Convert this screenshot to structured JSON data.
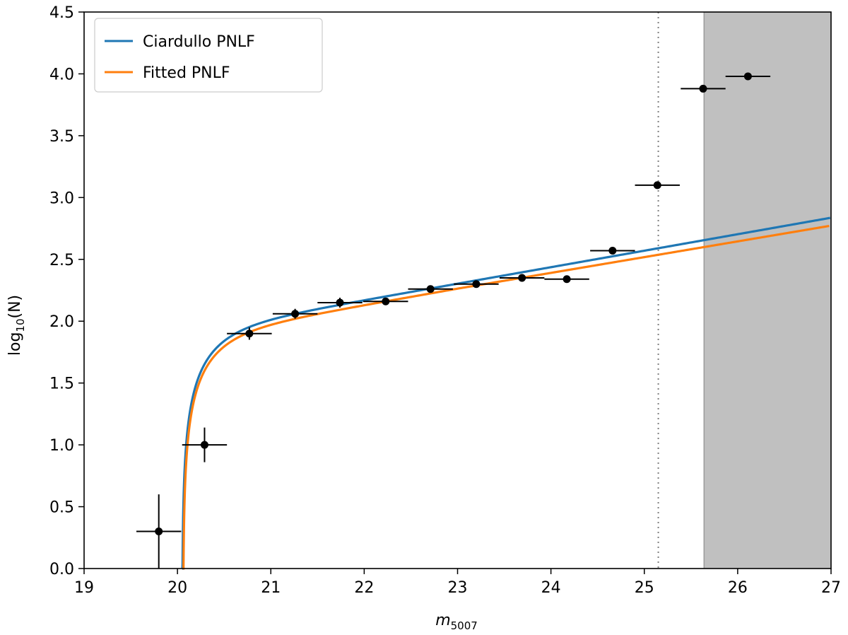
{
  "chart_data": {
    "type": "scatter",
    "xlabel_main": "m",
    "xlabel_sub": "5007",
    "ylabel_main": "log",
    "ylabel_sub": "10",
    "ylabel_tail": "(N)",
    "xlim": [
      19,
      27
    ],
    "ylim": [
      0,
      4.5
    ],
    "x_ticks": [
      19,
      20,
      21,
      22,
      23,
      24,
      25,
      26,
      27
    ],
    "x_tick_labels": [
      "19",
      "20",
      "21",
      "22",
      "23",
      "24",
      "25",
      "26",
      "27"
    ],
    "y_ticks": [
      0,
      0.5,
      1,
      1.5,
      2,
      2.5,
      3,
      3.5,
      4,
      4.5
    ],
    "y_tick_labels": [
      "0.0",
      "0.5",
      "1.0",
      "1.5",
      "2.0",
      "2.5",
      "3.0",
      "3.5",
      "4.0",
      "4.5"
    ],
    "grid": false,
    "legend_position": "top-left",
    "completeness_limit_x": 25.15,
    "shaded_region": [
      25.64,
      27
    ],
    "points": [
      {
        "x": 19.8,
        "y": 0.3,
        "xerr": 0.24,
        "yerr": 0.3
      },
      {
        "x": 20.29,
        "y": 1.0,
        "xerr": 0.24,
        "yerr": 0.14
      },
      {
        "x": 20.77,
        "y": 1.9,
        "xerr": 0.24,
        "yerr": 0.05
      },
      {
        "x": 21.26,
        "y": 2.06,
        "xerr": 0.24,
        "yerr": 0.04
      },
      {
        "x": 21.74,
        "y": 2.15,
        "xerr": 0.24,
        "yerr": 0.04
      },
      {
        "x": 22.23,
        "y": 2.16,
        "xerr": 0.24,
        "yerr": 0.03
      },
      {
        "x": 22.71,
        "y": 2.26,
        "xerr": 0.24,
        "yerr": 0.03
      },
      {
        "x": 23.2,
        "y": 2.3,
        "xerr": 0.24,
        "yerr": 0.03
      },
      {
        "x": 23.69,
        "y": 2.35,
        "xerr": 0.24,
        "yerr": 0.03
      },
      {
        "x": 24.17,
        "y": 2.34,
        "xerr": 0.24,
        "yerr": 0.03
      },
      {
        "x": 24.66,
        "y": 2.57,
        "xerr": 0.24,
        "yerr": 0.02
      },
      {
        "x": 25.14,
        "y": 3.1,
        "xerr": 0.24,
        "yerr": 0.01
      },
      {
        "x": 25.63,
        "y": 3.88,
        "xerr": 0.24,
        "yerr": 0.01
      },
      {
        "x": 26.11,
        "y": 3.98,
        "xerr": 0.24,
        "yerr": 0.01
      }
    ],
    "series": [
      {
        "name": "Ciardullo PNLF",
        "color": "#1f77b4",
        "mstar": 20.05,
        "offset": 0.0
      },
      {
        "name": "Fitted PNLF",
        "color": "#ff7f0e",
        "mstar": 20.06,
        "offset": -0.04
      }
    ],
    "colors": {
      "points": "#000000",
      "completeness_line": "#808080",
      "shade": "#c0c0c0"
    }
  }
}
